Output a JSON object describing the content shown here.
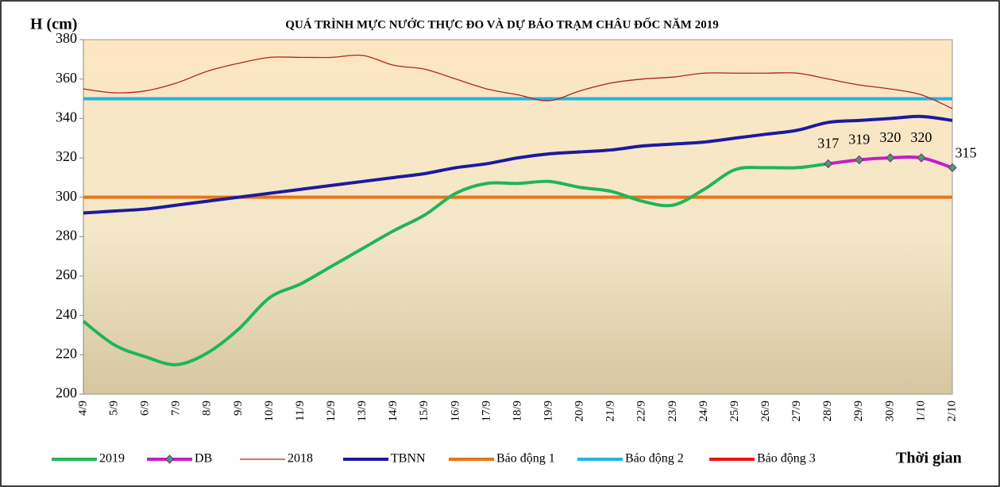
{
  "chart_data": {
    "type": "line",
    "title": "QUÁ TRÌNH MỰC NƯỚC THỰC ĐO VÀ DỰ BÁO TRẠM CHÂU ĐỐC NĂM  2019",
    "y_label": "H (cm)",
    "x_label": "Thời gian",
    "categories": [
      "4/9",
      "5/9",
      "6/9",
      "7/9",
      "8/9",
      "9/9",
      "10/9",
      "11/9",
      "12/9",
      "13/9",
      "14/9",
      "15/9",
      "16/9",
      "17/9",
      "18/9",
      "19/9",
      "20/9",
      "21/9",
      "22/9",
      "23/9",
      "24/9",
      "25/9",
      "26/9",
      "27/9",
      "28/9",
      "29/9",
      "30/9",
      "1/10",
      "2/10"
    ],
    "ylim": [
      200,
      380
    ],
    "yticks": [
      200,
      220,
      240,
      260,
      280,
      300,
      320,
      340,
      360,
      380
    ],
    "series": [
      {
        "name": "2019",
        "color": "#20b45a",
        "width": 4,
        "values": [
          237,
          225,
          219,
          215,
          221,
          233,
          249,
          256,
          265,
          274,
          283,
          291,
          302,
          307,
          307,
          308,
          305,
          303,
          298,
          296,
          304,
          314,
          315,
          315,
          317,
          null,
          null,
          null,
          null
        ]
      },
      {
        "name": "DB",
        "color": "#c21fc7",
        "width": 4,
        "markers": true,
        "data_labels": true,
        "values": [
          null,
          null,
          null,
          null,
          null,
          null,
          null,
          null,
          null,
          null,
          null,
          null,
          null,
          null,
          null,
          null,
          null,
          null,
          null,
          null,
          null,
          null,
          null,
          null,
          317,
          319,
          320,
          320,
          315
        ]
      },
      {
        "name": "2018",
        "color": "#b22222",
        "width": 1.3,
        "values": [
          355,
          353,
          354,
          358,
          364,
          368,
          371,
          371,
          371,
          372,
          367,
          365,
          360,
          355,
          352,
          349,
          354,
          358,
          360,
          361,
          363,
          363,
          363,
          363,
          360,
          357,
          355,
          352,
          345
        ]
      },
      {
        "name": "TBNN",
        "color": "#1b1a9e",
        "width": 4,
        "values": [
          292,
          293,
          294,
          296,
          298,
          300,
          302,
          304,
          306,
          308,
          310,
          312,
          315,
          317,
          320,
          322,
          323,
          324,
          326,
          327,
          328,
          330,
          332,
          334,
          338,
          339,
          340,
          341,
          339
        ]
      },
      {
        "name": "Báo động 1",
        "color": "#e87418",
        "width": 4,
        "value": 300
      },
      {
        "name": "Báo động 2",
        "color": "#1fb4ea",
        "width": 4,
        "value": 350
      },
      {
        "name": "Báo động 3",
        "color": "#ee1111",
        "width": 4
      }
    ]
  }
}
